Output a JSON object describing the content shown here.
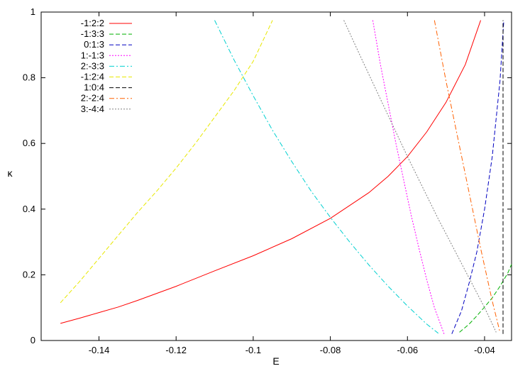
{
  "chart_data": {
    "type": "line",
    "title": "",
    "xlabel": "E",
    "ylabel": "κ",
    "xlim": [
      -0.155,
      -0.033
    ],
    "ylim": [
      0,
      1
    ],
    "xticks": [
      -0.14,
      -0.12,
      -0.1,
      -0.08,
      -0.06,
      -0.04
    ],
    "xtick_labels": [
      "-0.14",
      "-0.12",
      "-0.1",
      "-0.08",
      "-0.06",
      "-0.04"
    ],
    "yticks": [
      0,
      0.2,
      0.4,
      0.6,
      0.8,
      1
    ],
    "ytick_labels": [
      "0",
      "0.2",
      "0.4",
      "0.6",
      "0.8",
      "1"
    ],
    "grid": false,
    "legend_position": "top-left",
    "series": [
      {
        "name": "-1:2:2",
        "color": "#ff0000",
        "dash": "solid",
        "x": [
          -0.15,
          -0.145,
          -0.14,
          -0.135,
          -0.13,
          -0.12,
          -0.11,
          -0.1,
          -0.09,
          -0.08,
          -0.07,
          -0.065,
          -0.06,
          -0.055,
          -0.05,
          -0.045,
          -0.041
        ],
        "y": [
          0.052,
          0.068,
          0.085,
          0.102,
          0.122,
          0.165,
          0.212,
          0.258,
          0.31,
          0.372,
          0.45,
          0.5,
          0.56,
          0.635,
          0.725,
          0.84,
          0.975
        ]
      },
      {
        "name": "-1:3:3",
        "color": "#00b000",
        "dash": "dashed",
        "x": [
          -0.0465,
          -0.044,
          -0.042,
          -0.04,
          -0.038,
          -0.036,
          -0.034,
          -0.033
        ],
        "y": [
          0.025,
          0.05,
          0.075,
          0.102,
          0.13,
          0.165,
          0.205,
          0.232
        ]
      },
      {
        "name": "0:1:3",
        "color": "#0000c0",
        "dash": "dashed",
        "x": [
          -0.0485,
          -0.046,
          -0.044,
          -0.042,
          -0.04,
          -0.038,
          -0.036,
          -0.035
        ],
        "y": [
          0.02,
          0.09,
          0.175,
          0.27,
          0.4,
          0.56,
          0.79,
          0.975
        ]
      },
      {
        "name": "1:-1:3",
        "color": "#ff00ff",
        "dash": "dotted",
        "x": [
          -0.069,
          -0.067,
          -0.065,
          -0.063,
          -0.061,
          -0.059,
          -0.057,
          -0.055,
          -0.053,
          -0.0505
        ],
        "y": [
          0.975,
          0.84,
          0.72,
          0.6,
          0.49,
          0.38,
          0.28,
          0.185,
          0.1,
          0.02
        ]
      },
      {
        "name": "2:-3:3",
        "color": "#00d0d0",
        "dash": "dashdot",
        "x": [
          -0.11,
          -0.105,
          -0.1,
          -0.095,
          -0.09,
          -0.085,
          -0.08,
          -0.075,
          -0.07,
          -0.065,
          -0.06,
          -0.055,
          -0.052
        ],
        "y": [
          0.975,
          0.855,
          0.745,
          0.64,
          0.545,
          0.455,
          0.375,
          0.3,
          0.23,
          0.165,
          0.105,
          0.05,
          0.022
        ]
      },
      {
        "name": "-1:2:4",
        "color": "#e8e800",
        "dash": "dashed",
        "x": [
          -0.15,
          -0.145,
          -0.14,
          -0.135,
          -0.13,
          -0.125,
          -0.12,
          -0.115,
          -0.11,
          -0.105,
          -0.1,
          -0.095
        ],
        "y": [
          0.115,
          0.18,
          0.25,
          0.32,
          0.39,
          0.455,
          0.525,
          0.6,
          0.68,
          0.76,
          0.85,
          0.975
        ]
      },
      {
        "name": "1:0:4",
        "color": "#000000",
        "dash": "dashed",
        "x": [
          -0.0352,
          -0.0352,
          -0.0352
        ],
        "y": [
          0.02,
          0.5,
          0.975
        ]
      },
      {
        "name": "2:-2:4",
        "color": "#ff6000",
        "dash": "dashdot",
        "x": [
          -0.053,
          -0.05,
          -0.047,
          -0.044,
          -0.041,
          -0.038,
          -0.036
        ],
        "y": [
          0.975,
          0.79,
          0.62,
          0.45,
          0.28,
          0.12,
          0.025
        ]
      },
      {
        "name": "3:-4:4",
        "color": "#808080",
        "dash": "dotted",
        "x": [
          -0.0765,
          -0.072,
          -0.068,
          -0.064,
          -0.06,
          -0.056,
          -0.052,
          -0.048,
          -0.044,
          -0.04,
          -0.037
        ],
        "y": [
          0.975,
          0.86,
          0.76,
          0.66,
          0.56,
          0.465,
          0.37,
          0.28,
          0.19,
          0.1,
          0.025
        ]
      }
    ]
  }
}
